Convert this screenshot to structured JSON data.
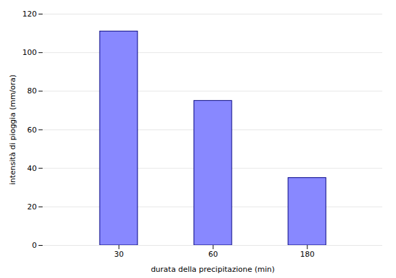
{
  "chart_data": {
    "type": "bar",
    "categories": [
      "30",
      "60",
      "180"
    ],
    "values": [
      111,
      75,
      35
    ],
    "color": "#8888ff",
    "xlabel": "durata della precipitazione (min)",
    "ylabel": "intensità di pioggia (mm/ora)",
    "ylim": [
      0,
      120
    ],
    "yticks": [
      0,
      20,
      40,
      60,
      80,
      100,
      120
    ],
    "grid": true
  }
}
